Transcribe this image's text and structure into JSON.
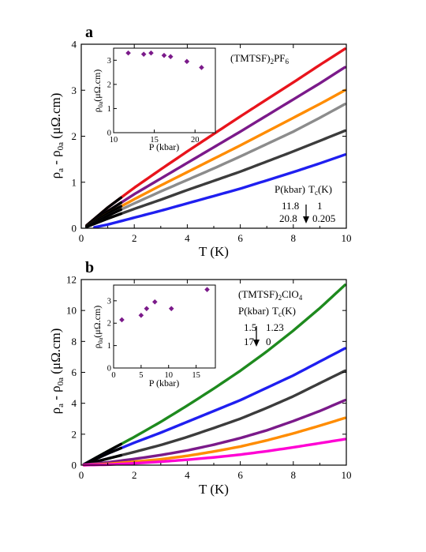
{
  "chart_data": [
    {
      "type": "scatter",
      "panel_label": "a",
      "compound": "(TMTSF)2PF6",
      "compound_parts": [
        "(TMTSF)",
        "2",
        "PF",
        "6"
      ],
      "xlabel": "T (K)",
      "ylabel_parts": [
        "ρ",
        "a",
        " - ρ",
        "0a",
        " (μΩ.cm)"
      ],
      "xlim": [
        0,
        10
      ],
      "ylim": [
        0,
        4
      ],
      "xticks": [
        0,
        2,
        4,
        6,
        8,
        10
      ],
      "yticks": [
        0,
        1,
        2,
        3,
        4
      ],
      "legend_header": [
        "P(kbar)",
        "T",
        "c",
        "(K)"
      ],
      "legend_rows": [
        [
          "11.8",
          "1"
        ],
        [
          "20.8",
          "0.205"
        ]
      ],
      "series": [
        {
          "color": "#e8141c",
          "low_T_color": "#000000",
          "x": [
            0.2,
            1,
            2,
            3,
            4,
            5,
            6,
            7,
            8,
            9,
            9.95
          ],
          "y": [
            0.06,
            0.45,
            0.88,
            1.28,
            1.67,
            2.05,
            2.43,
            2.8,
            3.17,
            3.55,
            3.9
          ]
        },
        {
          "color": "#7b1a8a",
          "low_T_color": "#000000",
          "x": [
            0.2,
            1,
            2,
            3,
            4,
            5,
            6,
            7,
            8,
            9,
            9.95
          ],
          "y": [
            0.05,
            0.37,
            0.74,
            1.08,
            1.42,
            1.76,
            2.1,
            2.45,
            2.8,
            3.15,
            3.5
          ]
        },
        {
          "color": "#ff8c00",
          "low_T_color": "#000000",
          "x": [
            0.2,
            1,
            2,
            3,
            4,
            5,
            6,
            7,
            8,
            9,
            9.95
          ],
          "y": [
            0.04,
            0.32,
            0.63,
            0.93,
            1.22,
            1.51,
            1.8,
            2.1,
            2.4,
            2.7,
            3.0
          ]
        },
        {
          "color": "#8c8c8c",
          "low_T_color": "#000000",
          "x": [
            0.2,
            1,
            2,
            3,
            4,
            5,
            6,
            7,
            8,
            9,
            9.95
          ],
          "y": [
            0.03,
            0.27,
            0.54,
            0.8,
            1.05,
            1.3,
            1.56,
            1.83,
            2.1,
            2.4,
            2.7
          ]
        },
        {
          "color": "#3c3c3c",
          "low_T_color": "#000000",
          "x": [
            0.2,
            1,
            2,
            3,
            4,
            5,
            6,
            7,
            8,
            9,
            9.95
          ],
          "y": [
            0.03,
            0.21,
            0.42,
            0.62,
            0.83,
            1.03,
            1.23,
            1.45,
            1.67,
            1.9,
            2.12
          ]
        },
        {
          "color": "#1f1ff0",
          "low_T_color": "#1f1ff0",
          "x": [
            0.5,
            1,
            2,
            3,
            4,
            5,
            6,
            7,
            8,
            9,
            9.95
          ],
          "y": [
            0.02,
            0.08,
            0.23,
            0.38,
            0.54,
            0.7,
            0.86,
            1.04,
            1.22,
            1.41,
            1.6
          ]
        }
      ],
      "inset": {
        "type": "scatter",
        "xlabel": "P (kbar)",
        "ylabel_parts": [
          "ρ",
          "0a",
          "(μΩ.cm)"
        ],
        "xlim": [
          10,
          22.5
        ],
        "ylim": [
          0,
          3.5
        ],
        "xticks": [
          10,
          15,
          20
        ],
        "yticks": [
          0,
          1,
          2,
          3
        ],
        "marker_color": "#7b1a8a",
        "x": [
          11.8,
          13.7,
          14.6,
          16.2,
          17.0,
          19.0,
          20.8
        ],
        "y": [
          3.3,
          3.25,
          3.3,
          3.2,
          3.15,
          2.95,
          2.7
        ]
      }
    },
    {
      "type": "scatter",
      "panel_label": "b",
      "compound": "(TMTSF)2ClO4",
      "compound_parts": [
        "(TMTSF)",
        "2",
        "ClO",
        "4"
      ],
      "xlabel": "T (K)",
      "ylabel_parts": [
        "ρ",
        "a",
        " - ρ",
        "0a",
        " (μΩ.cm)"
      ],
      "xlim": [
        0,
        10
      ],
      "ylim": [
        0,
        12
      ],
      "xticks": [
        0,
        2,
        4,
        6,
        8,
        10
      ],
      "yticks": [
        0,
        2,
        4,
        6,
        8,
        10,
        12
      ],
      "legend_header": [
        "P(kbar)",
        "T",
        "c",
        "(K)"
      ],
      "legend_rows": [
        [
          "1.5",
          "1.23"
        ],
        [
          "17",
          "0"
        ]
      ],
      "series": [
        {
          "color": "#1e8a1e",
          "low_T_color": "#000000",
          "x": [
            0.1,
            1,
            2,
            3,
            4,
            5,
            6,
            7,
            8,
            9,
            9.95
          ],
          "y": [
            0.05,
            0.9,
            1.82,
            2.8,
            3.85,
            4.95,
            6.1,
            7.35,
            8.7,
            10.15,
            11.65
          ]
        },
        {
          "color": "#1f1ff0",
          "low_T_color": "#000000",
          "x": [
            0.1,
            1,
            2,
            3,
            4,
            5,
            6,
            7,
            8,
            9,
            9.95
          ],
          "y": [
            0.04,
            0.75,
            1.45,
            2.1,
            2.8,
            3.5,
            4.2,
            5.0,
            5.8,
            6.7,
            7.55
          ]
        },
        {
          "color": "#3c3c3c",
          "low_T_color": "#000000",
          "x": [
            0.1,
            1,
            2,
            3,
            4,
            5,
            6,
            7,
            8,
            9,
            9.95
          ],
          "y": [
            0.03,
            0.42,
            0.85,
            1.3,
            1.82,
            2.4,
            3.0,
            3.7,
            4.45,
            5.3,
            6.1
          ]
        },
        {
          "color": "#7b1a8a",
          "low_T_color": "#7b1a8a",
          "x": [
            0.1,
            1,
            2,
            3,
            4,
            5,
            6,
            7,
            8,
            9,
            9.95
          ],
          "y": [
            0.02,
            0.18,
            0.4,
            0.65,
            0.95,
            1.32,
            1.75,
            2.25,
            2.85,
            3.5,
            4.2
          ]
        },
        {
          "color": "#ff8c00",
          "low_T_color": "#ff8c00",
          "x": [
            0.1,
            1,
            2,
            3,
            4,
            5,
            6,
            7,
            8,
            9,
            9.95
          ],
          "y": [
            0.0,
            0.08,
            0.22,
            0.38,
            0.6,
            0.88,
            1.2,
            1.6,
            2.05,
            2.55,
            3.05
          ]
        },
        {
          "color": "#ff00d4",
          "low_T_color": "#ff00d4",
          "x": [
            0.1,
            1,
            2,
            3,
            4,
            5,
            6,
            7,
            8,
            9,
            9.95
          ],
          "y": [
            0.0,
            0.03,
            0.12,
            0.22,
            0.35,
            0.5,
            0.68,
            0.9,
            1.15,
            1.42,
            1.68
          ]
        }
      ],
      "inset": {
        "type": "scatter",
        "xlabel": "P (kbar)",
        "ylabel_parts": [
          "ρ",
          "0a",
          "(μΩ.cm)"
        ],
        "xlim": [
          0,
          18.5
        ],
        "ylim": [
          0,
          3.7
        ],
        "xticks": [
          0,
          5,
          10,
          15
        ],
        "yticks": [
          0,
          1,
          2,
          3
        ],
        "marker_color": "#7b1a8a",
        "x": [
          1.5,
          5.0,
          6.0,
          7.5,
          10.5,
          17.0
        ],
        "y": [
          2.15,
          2.35,
          2.65,
          2.95,
          2.65,
          3.5
        ]
      }
    }
  ]
}
